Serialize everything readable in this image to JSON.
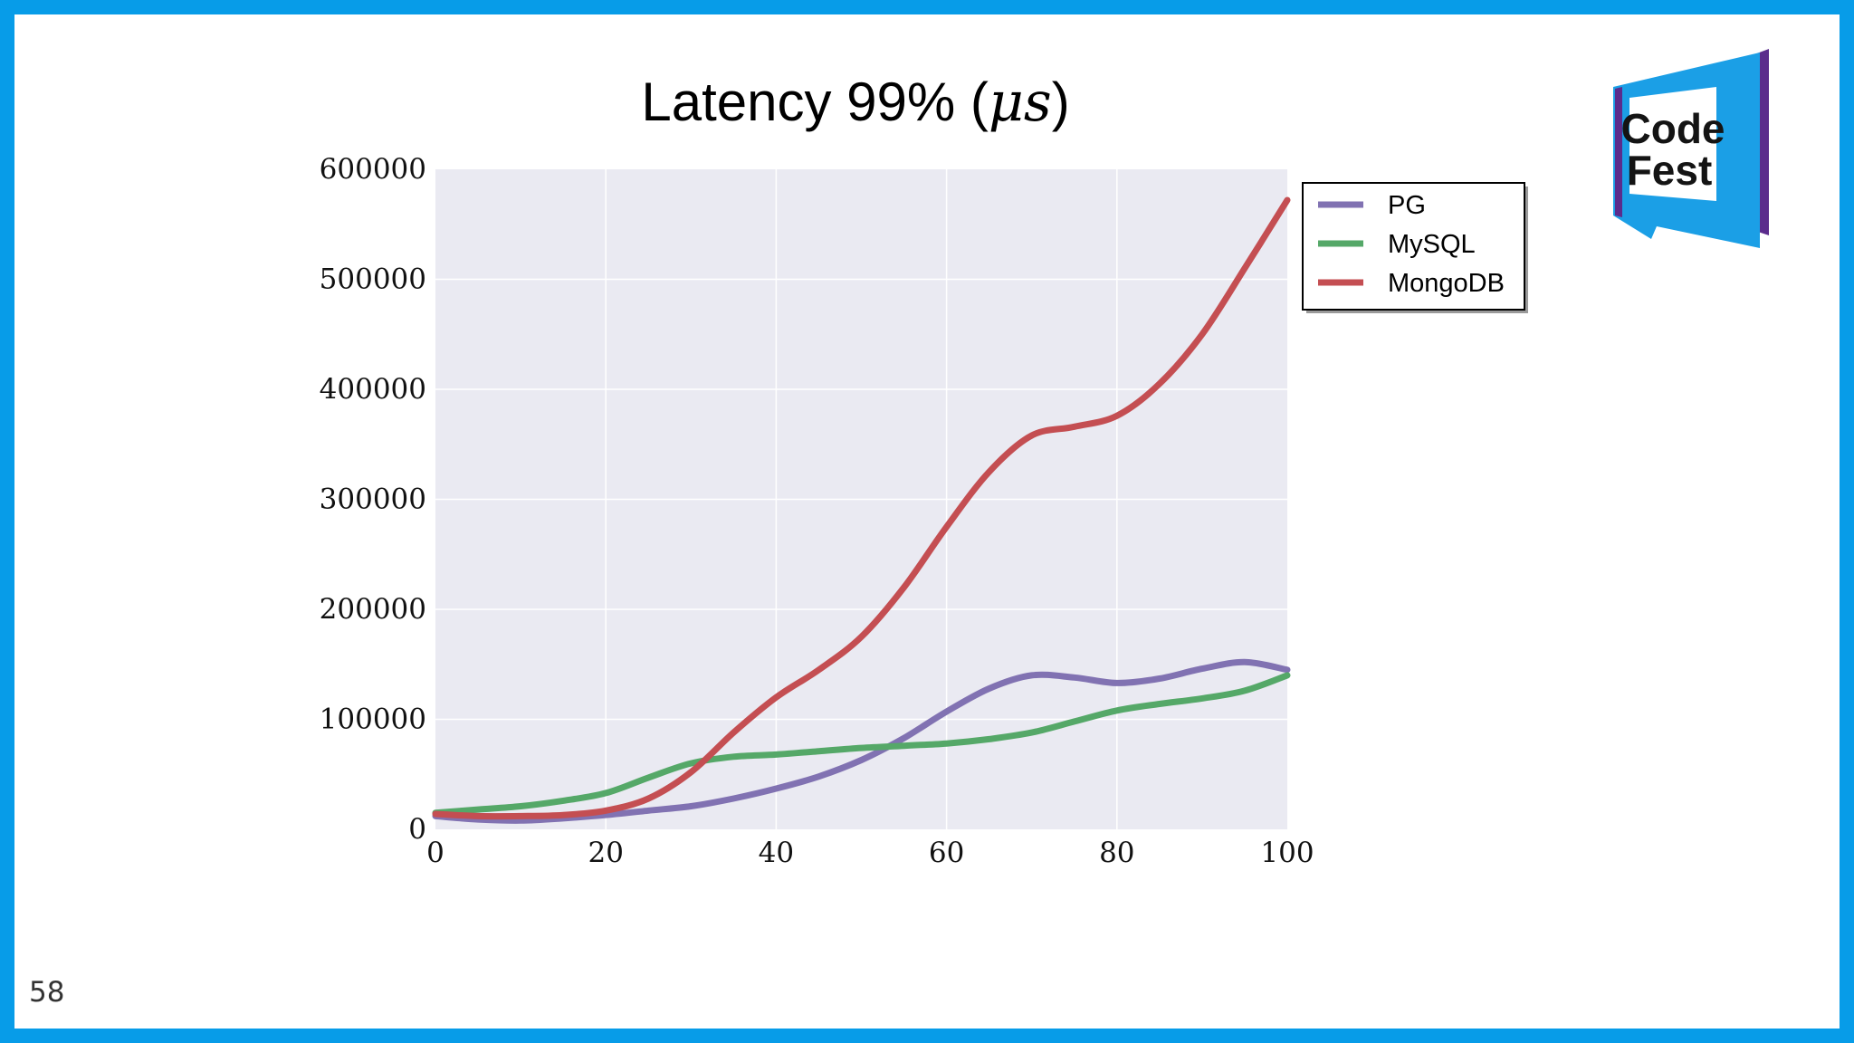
{
  "slide": {
    "page_number": "58"
  },
  "logo": {
    "line1": "Code",
    "line2": "Fest",
    "colors": {
      "blue": "#1b9fe6",
      "purple": "#5b2c8c",
      "dark": "#141414"
    }
  },
  "chart_data": {
    "type": "line",
    "title": "Latency 99% (",
    "title_math": "μs",
    "title_end": ")",
    "xlabel": "",
    "ylabel": "",
    "xlim": [
      0,
      100
    ],
    "ylim": [
      0,
      600000
    ],
    "x_ticks": [
      0,
      20,
      40,
      60,
      80,
      100
    ],
    "x_tick_labels": [
      "0",
      "20",
      "40",
      "60",
      "80",
      "100"
    ],
    "y_ticks": [
      0,
      100000,
      200000,
      300000,
      400000,
      500000,
      600000
    ],
    "y_tick_labels": [
      "0",
      "100000",
      "200000",
      "300000",
      "400000",
      "500000",
      "600000"
    ],
    "grid": true,
    "legend_position": "outside-top-right",
    "x": [
      0,
      5,
      10,
      15,
      20,
      25,
      30,
      35,
      40,
      45,
      50,
      55,
      60,
      65,
      70,
      75,
      80,
      85,
      90,
      95,
      100
    ],
    "series": [
      {
        "name": "PG",
        "color": "#8172b2",
        "values": [
          12000,
          9000,
          8000,
          10000,
          13000,
          17000,
          21000,
          28000,
          37000,
          48000,
          63000,
          83000,
          107000,
          128000,
          140000,
          138000,
          133000,
          137000,
          146000,
          152000,
          145000
        ]
      },
      {
        "name": "MySQL",
        "color": "#55a868",
        "values": [
          15000,
          18000,
          21000,
          26000,
          33000,
          47000,
          60000,
          66000,
          68000,
          71000,
          74000,
          76000,
          78000,
          82000,
          88000,
          98000,
          108000,
          114000,
          119000,
          126000,
          140000
        ]
      },
      {
        "name": "MongoDB",
        "color": "#c44e52",
        "values": [
          14000,
          12000,
          12000,
          13000,
          17000,
          28000,
          52000,
          88000,
          120000,
          145000,
          175000,
          220000,
          275000,
          325000,
          358000,
          366000,
          376000,
          405000,
          450000,
          510000,
          572000
        ]
      }
    ]
  }
}
